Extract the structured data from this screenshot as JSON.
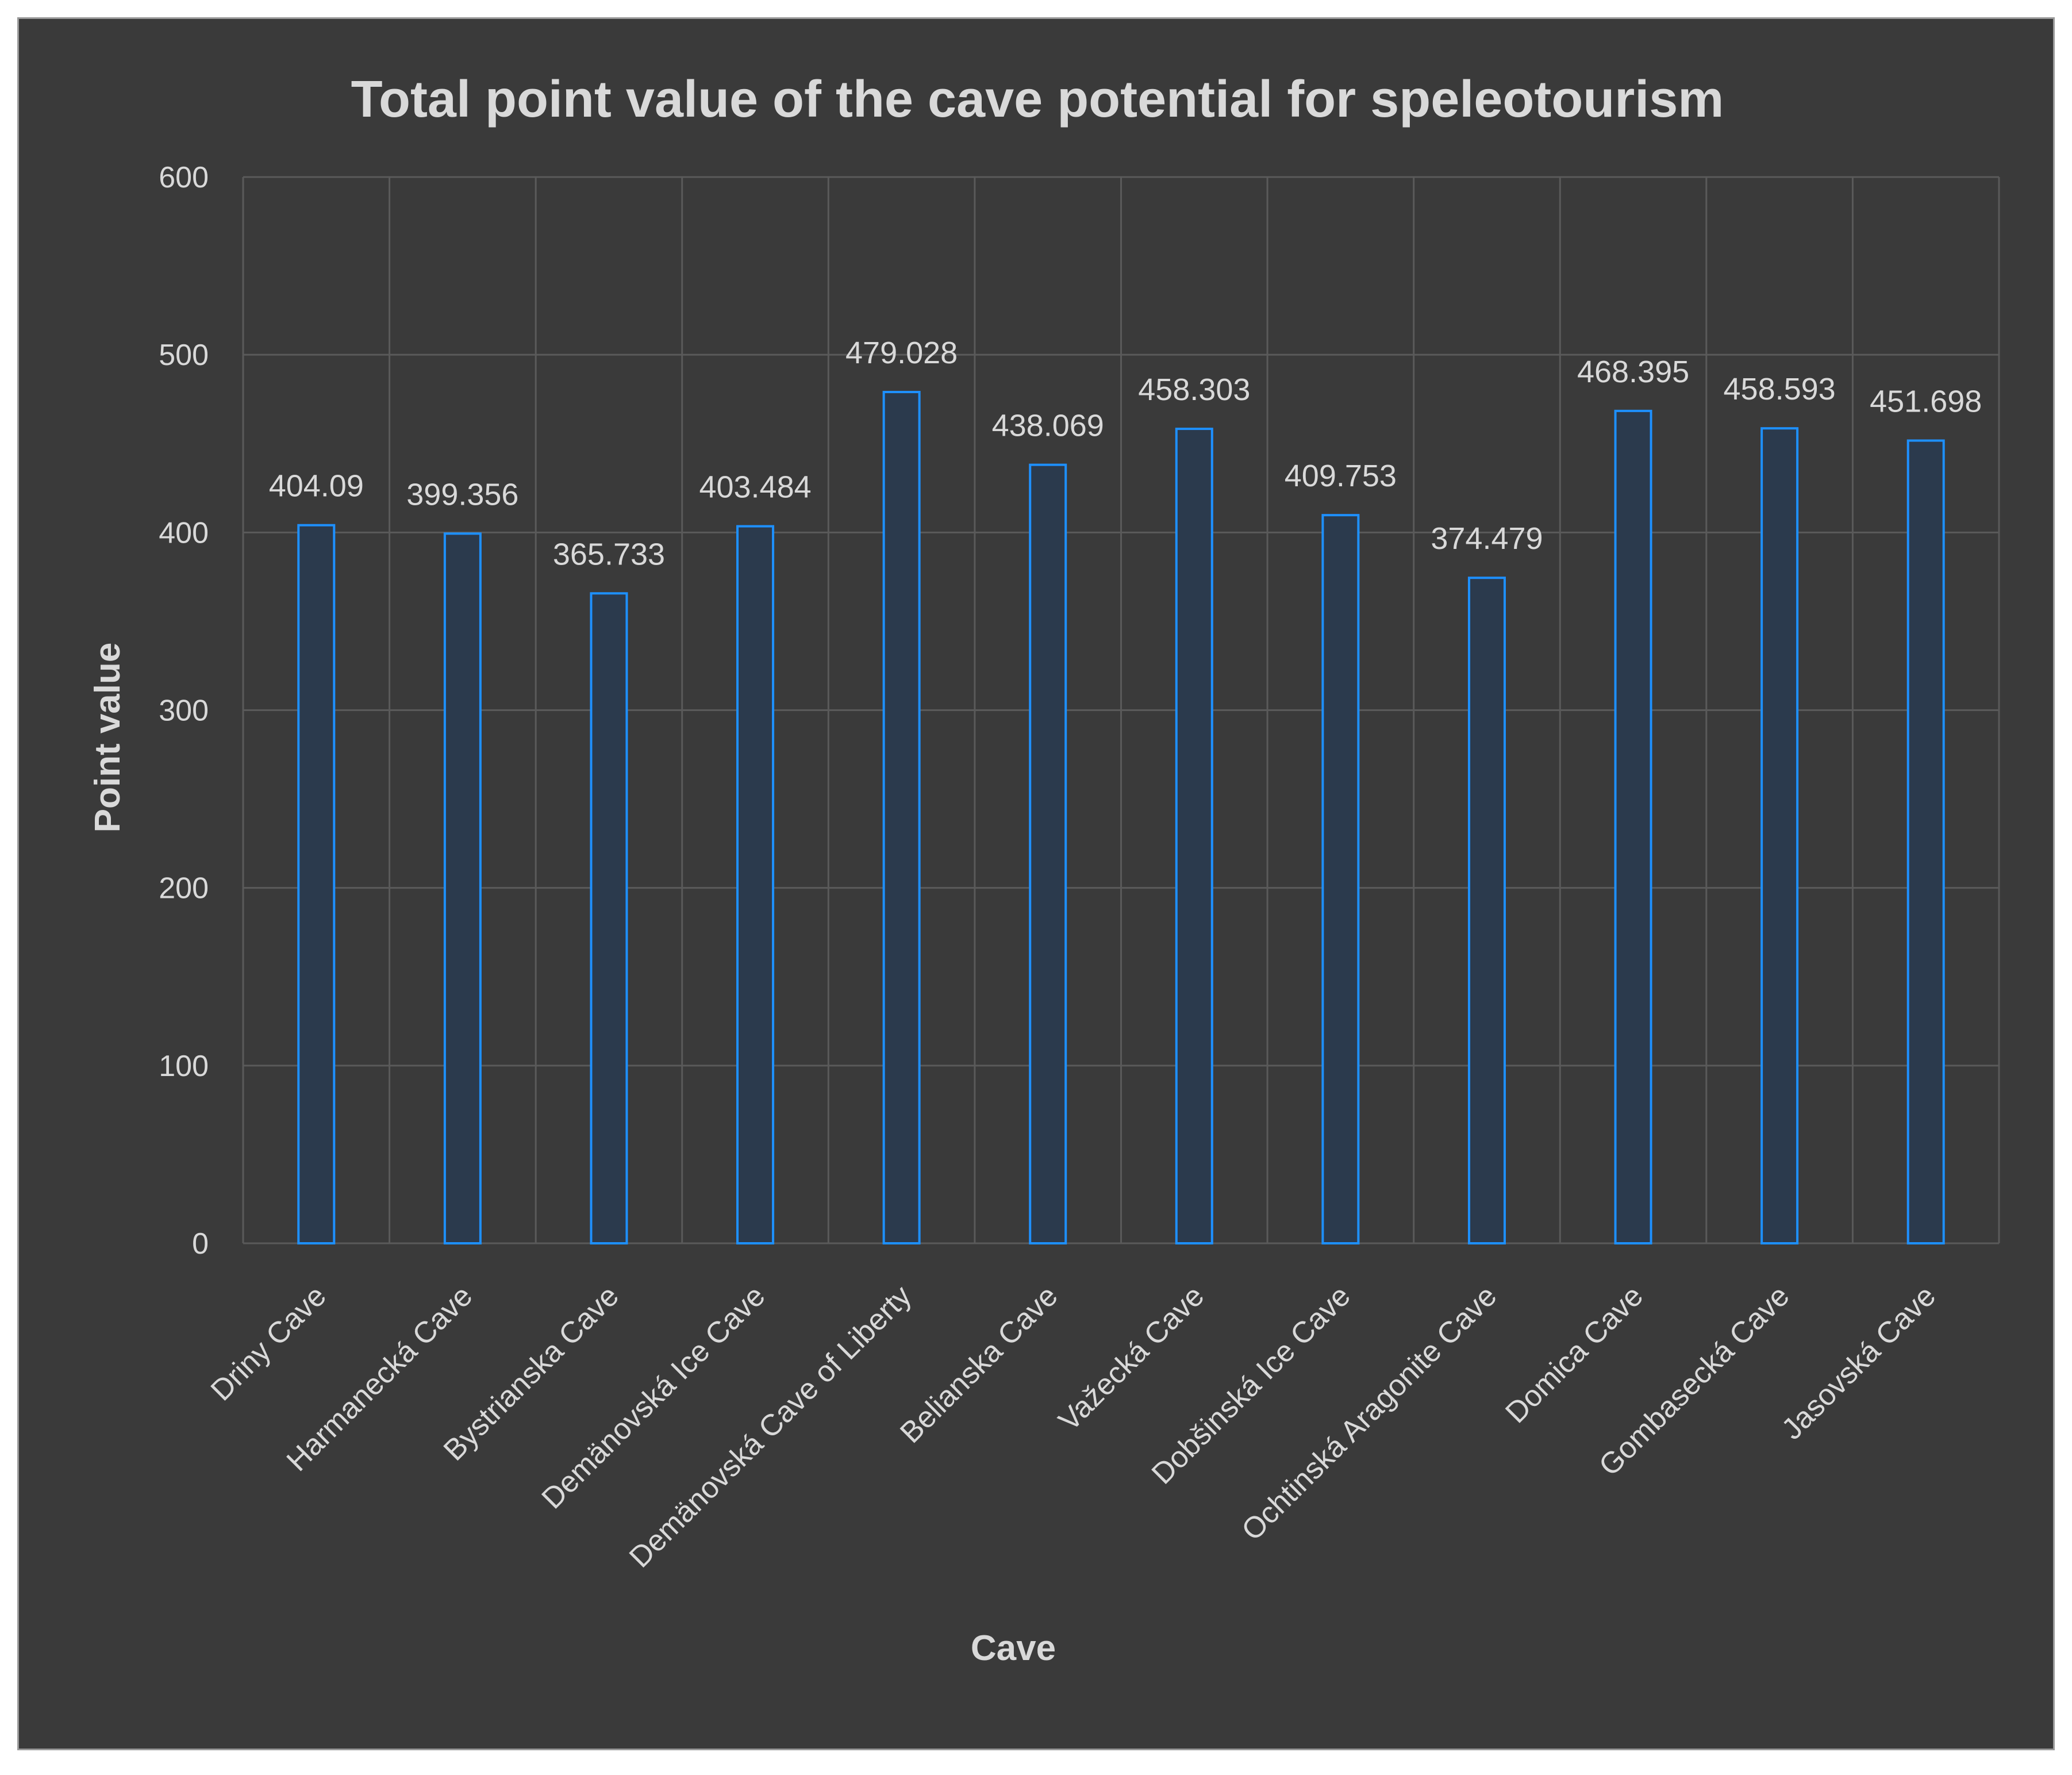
{
  "chart_data": {
    "type": "bar",
    "title": "Total point value of the cave potential for speleotourism",
    "xlabel": "Cave",
    "ylabel": "Point value",
    "ylim": [
      0,
      600
    ],
    "yticks": [
      0,
      100,
      200,
      300,
      400,
      500,
      600
    ],
    "grid": true,
    "categories": [
      "Driny Cave",
      "Harmanecká Cave",
      "Bystrianska Cave",
      "Demänovská Ice Cave",
      "Demänovská Cave of Liberty",
      "Belianska Cave",
      "Važecká Cave",
      "Dobšinská Ice Cave",
      "Ochtinská Aragonite Cave",
      "Domica Cave",
      "Gombasecká Cave",
      "Jasovská Cave"
    ],
    "values": [
      404.09,
      399.356,
      365.733,
      403.484,
      479.028,
      438.069,
      458.303,
      409.753,
      374.479,
      468.395,
      458.593,
      451.698
    ],
    "labels": [
      "404.09",
      "399.356",
      "365.733",
      "403.484",
      "479.028",
      "438.069",
      "458.303",
      "409.753",
      "374.479",
      "468.395",
      "458.593",
      "451.698"
    ],
    "colors": {
      "background": "#3a3a3a",
      "bar_outline": "#1e90ff",
      "text": "#d9d9d9",
      "grid": "#5a5a5a"
    }
  }
}
